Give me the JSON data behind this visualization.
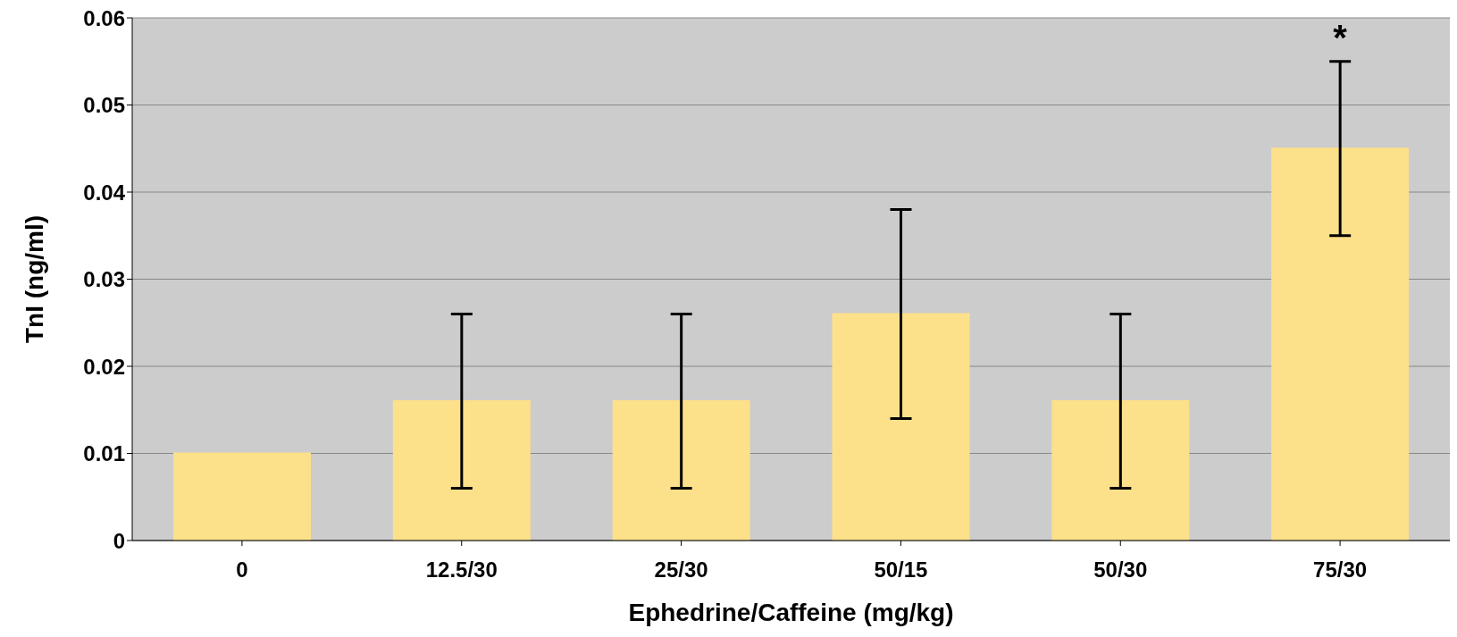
{
  "chart_data": {
    "type": "bar",
    "xlabel": "Ephedrine/Caffeine (mg/kg)",
    "ylabel": "TnI (ng/ml)",
    "categories": [
      "0",
      "12.5/30",
      "25/30",
      "50/15",
      "50/30",
      "75/30"
    ],
    "values": [
      0.01,
      0.016,
      0.016,
      0.026,
      0.016,
      0.045
    ],
    "errors": [
      0,
      0.01,
      0.01,
      0.012,
      0.01,
      0.01
    ],
    "color": "#fde08a",
    "ylim": [
      0,
      0.06
    ],
    "yticks": [
      {
        "value": 0,
        "label": "0"
      },
      0.01,
      0.02,
      0.03,
      0.04,
      0.05,
      0.06
    ],
    "grid": "y",
    "annotations": [
      "*"
    ]
  }
}
